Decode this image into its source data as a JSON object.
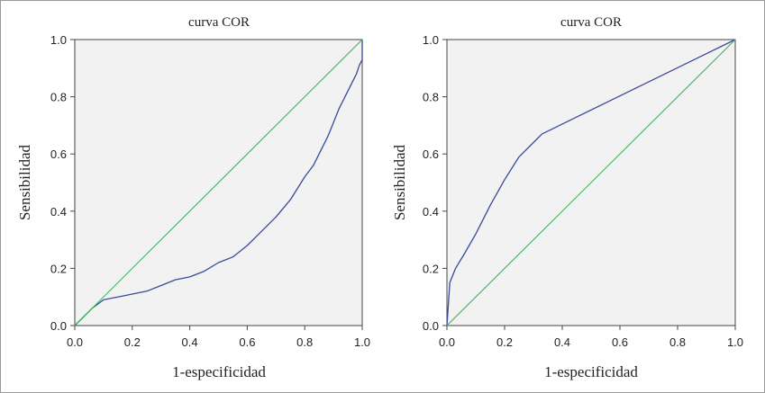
{
  "colors": {
    "roc_curve": "#3a4a9a",
    "reference_line": "#3cb85c",
    "plot_background": "#f2f2f2"
  },
  "chart_data": [
    {
      "type": "line",
      "title": "curva COR",
      "xlabel": "1-especificidad",
      "ylabel": "Sensibilidad",
      "xlim": [
        0,
        1
      ],
      "ylim": [
        0,
        1
      ],
      "xticks": [
        "0.0",
        "0.2",
        "0.4",
        "0.6",
        "0.8",
        "1.0"
      ],
      "yticks": [
        "0.0",
        "0.2",
        "0.4",
        "0.6",
        "0.8",
        "1.0"
      ],
      "grid": false,
      "series": [
        {
          "role": "roc",
          "x": [
            0.0,
            0.03,
            0.06,
            0.1,
            0.15,
            0.2,
            0.25,
            0.3,
            0.35,
            0.4,
            0.45,
            0.5,
            0.55,
            0.6,
            0.65,
            0.7,
            0.75,
            0.8,
            0.83,
            0.86,
            0.88,
            0.9,
            0.92,
            0.94,
            0.96,
            0.98,
            0.99,
            1.0,
            1.0
          ],
          "y": [
            0.0,
            0.03,
            0.06,
            0.09,
            0.1,
            0.11,
            0.12,
            0.14,
            0.16,
            0.17,
            0.19,
            0.22,
            0.24,
            0.28,
            0.33,
            0.38,
            0.44,
            0.52,
            0.56,
            0.62,
            0.66,
            0.71,
            0.76,
            0.8,
            0.84,
            0.88,
            0.91,
            0.93,
            1.0
          ]
        },
        {
          "role": "reference",
          "x": [
            0,
            1
          ],
          "y": [
            0,
            1
          ]
        }
      ]
    },
    {
      "type": "line",
      "title": "curva COR",
      "xlabel": "1-especificidad",
      "ylabel": "Sensibilidad",
      "xlim": [
        0,
        1
      ],
      "ylim": [
        0,
        1
      ],
      "xticks": [
        "0.0",
        "0.2",
        "0.4",
        "0.6",
        "0.8",
        "1.0"
      ],
      "yticks": [
        "0.0",
        "0.2",
        "0.4",
        "0.6",
        "0.8",
        "1.0"
      ],
      "grid": false,
      "series": [
        {
          "role": "roc",
          "x": [
            0.0,
            0.01,
            0.03,
            0.06,
            0.1,
            0.15,
            0.2,
            0.25,
            0.3,
            0.33,
            1.0
          ],
          "y": [
            0.0,
            0.15,
            0.2,
            0.25,
            0.32,
            0.42,
            0.51,
            0.59,
            0.64,
            0.67,
            1.0
          ]
        },
        {
          "role": "reference",
          "x": [
            0,
            1
          ],
          "y": [
            0,
            1
          ]
        }
      ]
    }
  ]
}
